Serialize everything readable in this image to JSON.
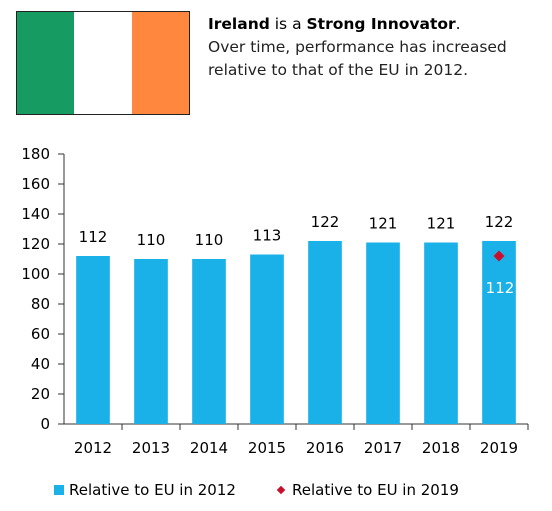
{
  "flag": {
    "colors": [
      "#169b62",
      "#ffffff",
      "#ff883e"
    ]
  },
  "headline": {
    "country": "Ireland",
    "connector": " is a ",
    "group": "Strong Innovator",
    "period": ".",
    "subtitle": "Over time, performance has increased relative to that of the EU in 2012."
  },
  "chart_data": {
    "type": "bar",
    "categories": [
      "2012",
      "2013",
      "2014",
      "2015",
      "2016",
      "2017",
      "2018",
      "2019"
    ],
    "series": [
      {
        "name": "Relative to EU in 2012",
        "type": "bar",
        "color": "#1ab0e8",
        "values": [
          112,
          110,
          110,
          113,
          122,
          121,
          121,
          122
        ]
      },
      {
        "name": "Relative to EU in 2019",
        "type": "marker",
        "color": "#c8102e",
        "values": [
          null,
          null,
          null,
          null,
          null,
          null,
          null,
          112
        ]
      }
    ],
    "ylim": [
      0,
      180
    ],
    "yticks": [
      0,
      20,
      40,
      60,
      80,
      100,
      120,
      140,
      160,
      180
    ],
    "grid": false,
    "legend_position": "bottom",
    "title": "",
    "xlabel": "",
    "ylabel": ""
  }
}
